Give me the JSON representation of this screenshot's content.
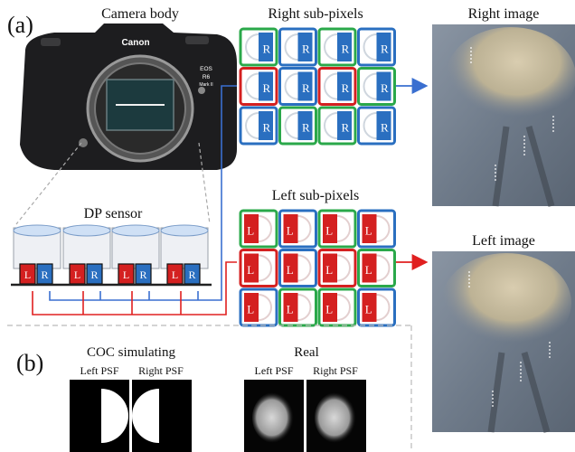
{
  "panel_a": {
    "tag": "(a)",
    "camera_title": "Camera body",
    "brand": "Canon",
    "model_lines": [
      "EOS",
      "R6",
      "Mark II"
    ],
    "dp_sensor_title": "DP sensor",
    "right_subpixels_title": "Right sub-pixels",
    "left_subpixels_title": "Left sub-pixels",
    "right_image_title": "Right image",
    "left_image_title": "Left image",
    "right_letter": "R",
    "left_letter": "L"
  },
  "panel_b": {
    "tag": "(b)",
    "coc_title": "COC simulating",
    "real_title": "Real",
    "left_psf": "Left PSF",
    "right_psf": "Right PSF"
  },
  "right_grid_border_colors": [
    [
      "green",
      "blue",
      "green",
      "blue"
    ],
    [
      "red",
      "blue",
      "red",
      "green"
    ],
    [
      "blue",
      "green",
      "green",
      "blue"
    ]
  ],
  "left_grid_border_colors": [
    [
      "green",
      "blue",
      "green",
      "blue"
    ],
    [
      "red",
      "blue",
      "red",
      "green"
    ],
    [
      "blue",
      "green",
      "green",
      "blue"
    ]
  ],
  "colors": {
    "red": "#d42020",
    "blue": "#2a6fc0",
    "green": "#2aa84a",
    "arrow_blue": "#3a6fd0",
    "arrow_red": "#e02020"
  }
}
